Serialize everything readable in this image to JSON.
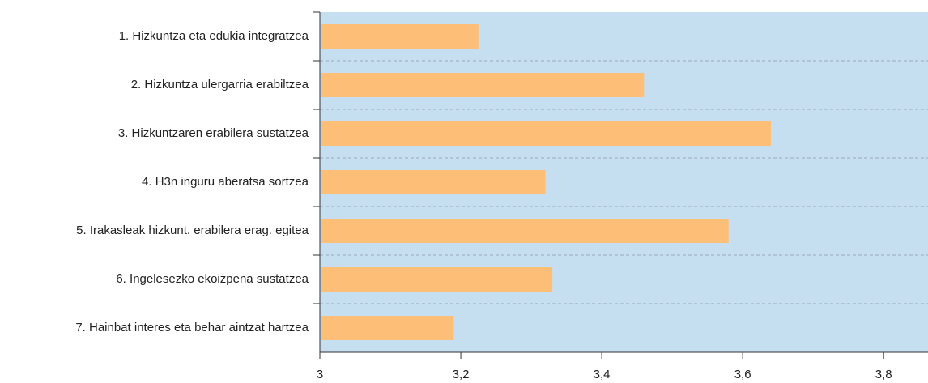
{
  "chart_data": {
    "type": "bar",
    "orientation": "horizontal",
    "categories": [
      "1. Hizkuntza eta edukia integratzea",
      "2. Hizkuntza ulergarria erabiltzea",
      "3. Hizkuntzaren erabilera sustatzea",
      "4. H3n inguru aberatsa sortzea",
      "5. Irakasleak hizkunt. erabilera erag. egitea",
      "6. Ingelesezko ekoizpena sustatzea",
      "7. Hainbat interes eta behar aintzat hartzea"
    ],
    "values": [
      3.225,
      3.46,
      3.64,
      3.32,
      3.58,
      3.33,
      3.19
    ],
    "color": "#fdbf78",
    "background": "#c5dff0",
    "xlim": [
      3,
      3.863
    ],
    "xticks": [
      3,
      {
        "value": 3.2,
        "label": "3,2"
      },
      {
        "value": 3.4,
        "label": "3,4"
      },
      {
        "value": 3.6,
        "label": "3,6"
      },
      {
        "value": 3.8,
        "label": "3,8"
      }
    ]
  }
}
